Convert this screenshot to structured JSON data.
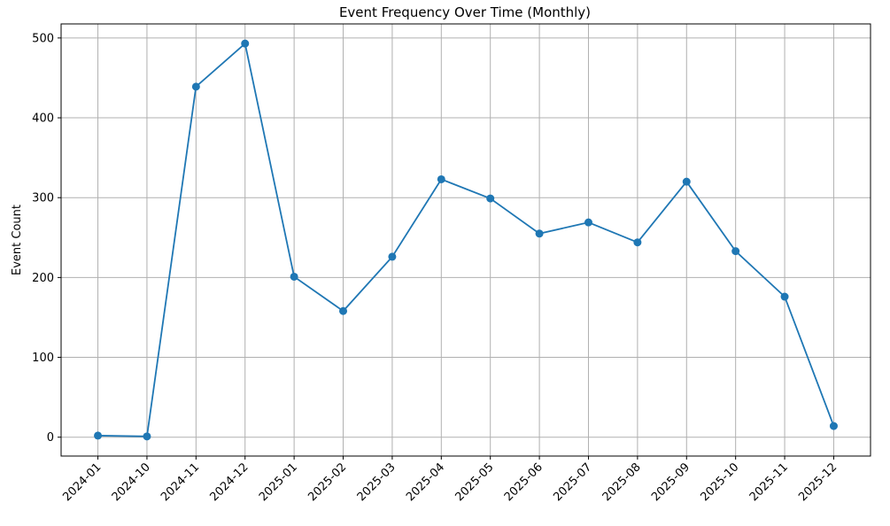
{
  "chart_data": {
    "type": "line",
    "title": "Event Frequency Over Time (Monthly)",
    "xlabel": "",
    "ylabel": "Event Count",
    "categories": [
      "2024-01",
      "2024-10",
      "2024-11",
      "2024-12",
      "2025-01",
      "2025-02",
      "2025-03",
      "2025-04",
      "2025-05",
      "2025-06",
      "2025-07",
      "2025-08",
      "2025-09",
      "2025-10",
      "2025-11",
      "2025-12"
    ],
    "series": [
      {
        "values": [
          2,
          1,
          439,
          493,
          201,
          158,
          226,
          323,
          299,
          255,
          269,
          244,
          320,
          233,
          176,
          14
        ]
      }
    ],
    "ylim": [
      -23.6,
      517.6
    ],
    "yticks": [
      0,
      100,
      200,
      300,
      400,
      500
    ],
    "grid": true,
    "line_color": "#1f77b4",
    "marker": "circle"
  }
}
